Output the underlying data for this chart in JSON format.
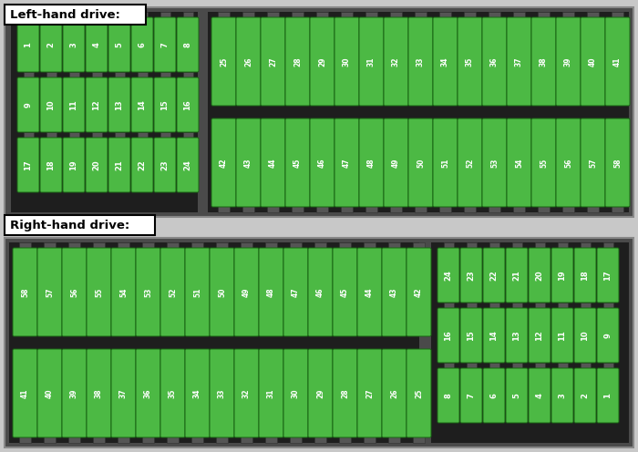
{
  "title_top": "Left-hand drive:",
  "title_bottom": "Right-hand drive:",
  "fuse_green": "#4cb944",
  "bg_box": "#4a4a4a",
  "bg_inner": "#2a2a2a",
  "text_color": "#ffffff",
  "outer_bg": "#c8c8c8",
  "lhd_left_rows": [
    [
      1,
      2,
      3,
      4,
      5,
      6,
      7,
      8
    ],
    [
      9,
      10,
      11,
      12,
      13,
      14,
      15,
      16
    ],
    [
      17,
      18,
      19,
      20,
      21,
      22,
      23,
      24
    ]
  ],
  "lhd_right_rows": [
    [
      25,
      26,
      27,
      28,
      29,
      30,
      31,
      32,
      33,
      34,
      35,
      36,
      37,
      38,
      39,
      40,
      41
    ],
    [
      42,
      43,
      44,
      45,
      46,
      47,
      48,
      49,
      50,
      51,
      52,
      53,
      54,
      55,
      56,
      57,
      58
    ]
  ],
  "rhd_left_rows": [
    [
      58,
      57,
      56,
      55,
      54,
      53,
      52,
      51,
      50,
      49,
      48,
      47,
      46,
      45,
      44,
      43,
      42
    ],
    [
      41,
      40,
      39,
      38,
      37,
      36,
      35,
      34,
      33,
      32,
      31,
      30,
      29,
      28,
      27,
      26,
      25
    ]
  ],
  "rhd_right_rows": [
    [
      24,
      23,
      22,
      21,
      20,
      19,
      18,
      17
    ],
    [
      16,
      15,
      14,
      13,
      12,
      11,
      10,
      9
    ],
    [
      8,
      7,
      6,
      5,
      4,
      3,
      2,
      1
    ]
  ]
}
